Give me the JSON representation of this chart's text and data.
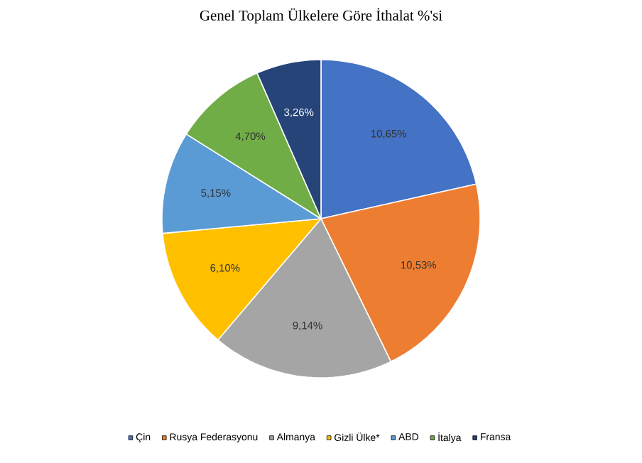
{
  "chart_data": {
    "type": "pie",
    "title": "Genel Toplam Ülkelere Göre İthalat %'si",
    "categories": [
      "Çin",
      "Rusya Federasyonu",
      "Almanya",
      "Gizli Ülke*",
      "ABD",
      "İtalya",
      "Fransa"
    ],
    "values": [
      10.65,
      10.53,
      9.14,
      6.1,
      5.15,
      4.7,
      3.26
    ],
    "value_labels": [
      "10,65%",
      "10,53%",
      "9,14%",
      "6,10%",
      "5,15%",
      "4,70%",
      "3,26%"
    ],
    "colors": [
      "#4472c4",
      "#ed7d31",
      "#a5a5a5",
      "#ffc000",
      "#5b9bd5",
      "#70ad47",
      "#264478"
    ],
    "legend": "bottom"
  }
}
